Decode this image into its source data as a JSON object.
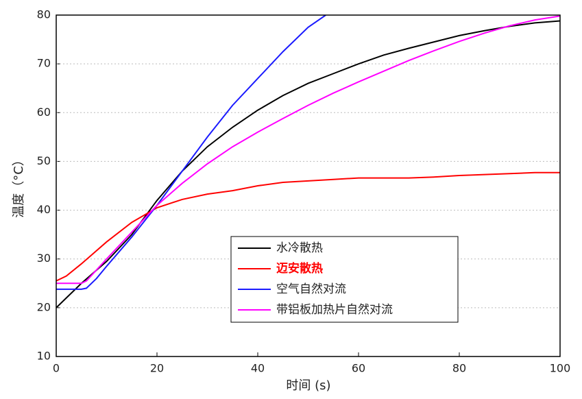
{
  "chart_data": {
    "type": "line",
    "xlabel": "时间 (s)",
    "ylabel": "温度（°C）",
    "xlim": [
      0,
      100
    ],
    "xticks": [
      0,
      20,
      40,
      60,
      80,
      100
    ],
    "ylim": [
      10,
      80
    ],
    "yticks": [
      10,
      20,
      30,
      40,
      50,
      60,
      70,
      80
    ],
    "grid": true,
    "legend": "lower-center",
    "series": [
      {
        "name": "水冷散热",
        "color": "#000000",
        "x": [
          0,
          2,
          5,
          10,
          15,
          20,
          25,
          30,
          35,
          40,
          45,
          50,
          55,
          60,
          65,
          70,
          75,
          80,
          85,
          90,
          95,
          100
        ],
        "values": [
          20,
          22,
          25,
          29.5,
          35,
          42,
          48,
          53,
          57,
          60.5,
          63.5,
          66,
          68,
          70,
          71.8,
          73.2,
          74.5,
          75.8,
          76.8,
          77.7,
          78.4,
          78.8
        ]
      },
      {
        "name": "迈安散热",
        "color": "#ff0000",
        "bold": true,
        "x": [
          0,
          2,
          5,
          10,
          15,
          20,
          25,
          30,
          35,
          40,
          45,
          50,
          55,
          60,
          65,
          70,
          75,
          80,
          85,
          90,
          95,
          100
        ],
        "values": [
          25.5,
          26.5,
          29,
          33.5,
          37.5,
          40.5,
          42.2,
          43.3,
          44,
          45,
          45.7,
          46,
          46.3,
          46.6,
          46.6,
          46.6,
          46.8,
          47.1,
          47.3,
          47.5,
          47.7,
          47.7
        ]
      },
      {
        "name": "空气自然对流",
        "color": "#1a1aff",
        "x": [
          0,
          5,
          6,
          8,
          10,
          15,
          20,
          25,
          30,
          35,
          40,
          45,
          50,
          53.5
        ],
        "values": [
          23.8,
          23.8,
          24,
          26,
          28.5,
          34.5,
          41,
          48,
          55,
          61.5,
          67,
          72.5,
          77.5,
          80
        ]
      },
      {
        "name": "带铝板加热片自然对流",
        "color": "#ff00ff",
        "x": [
          0,
          5,
          6,
          10,
          15,
          20,
          25,
          30,
          35,
          40,
          45,
          50,
          55,
          60,
          65,
          70,
          75,
          80,
          85,
          90,
          95,
          100
        ],
        "values": [
          25,
          25,
          25.5,
          30,
          35.5,
          41,
          45.5,
          49.5,
          53,
          56,
          58.8,
          61.5,
          64,
          66.3,
          68.5,
          70.7,
          72.7,
          74.6,
          76.3,
          77.8,
          79,
          79.8
        ]
      }
    ]
  }
}
